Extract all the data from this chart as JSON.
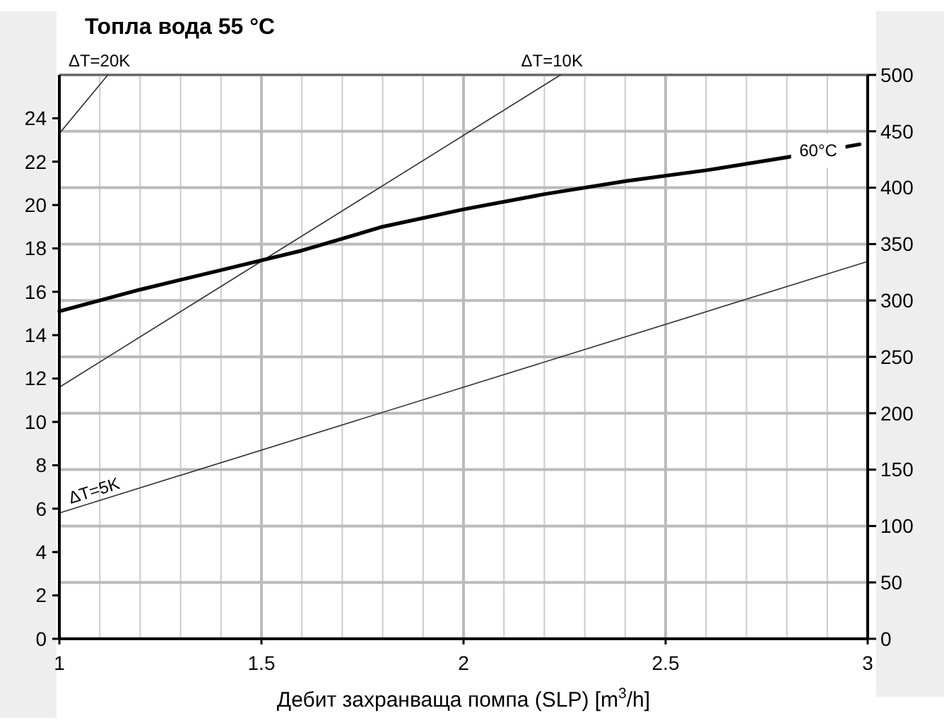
{
  "chart_data": {
    "type": "line",
    "title": "Топла вода 55 °C",
    "xlabel": "Дебит захранваща помпа (SLP) [m$^{3}$/h]",
    "xlim": [
      1,
      3
    ],
    "xticks": [
      1,
      {
        "value": 1.1,
        "label": null
      },
      {
        "value": 1.2,
        "label": null
      },
      {
        "value": 1.3,
        "label": null
      },
      {
        "value": 1.4,
        "label": null
      },
      1.5,
      {
        "value": 1.6,
        "label": null
      },
      {
        "value": 1.7,
        "label": null
      },
      {
        "value": 1.8,
        "label": null
      },
      {
        "value": 1.9,
        "label": null
      },
      2,
      {
        "value": 2.1,
        "label": null
      },
      {
        "value": 2.2,
        "label": null
      },
      {
        "value": 2.3,
        "label": null
      },
      {
        "value": 2.4,
        "label": null
      },
      2.5,
      {
        "value": 2.6,
        "label": null
      },
      {
        "value": 2.7,
        "label": null
      },
      {
        "value": 2.8,
        "label": null
      },
      {
        "value": 2.9,
        "label": null
      },
      3
    ],
    "ylim": [
      0,
      26
    ],
    "yticks": [
      0,
      2,
      4,
      6,
      8,
      10,
      12,
      14,
      16,
      18,
      20,
      22,
      24
    ],
    "y2lim": [
      0,
      500
    ],
    "y2ticks": [
      0,
      50,
      100,
      150,
      200,
      250,
      300,
      350,
      400,
      450,
      500
    ],
    "grid": true,
    "marker": "none",
    "line_style": "solid",
    "series": [
      {
        "name": "ΔT=20K",
        "color": "#333333",
        "x": [
          1,
          1.12
        ],
        "values": [
          23.3,
          26
        ]
      },
      {
        "name": "ΔT=10K",
        "color": "#333333",
        "x": [
          1,
          2.24
        ],
        "values": [
          11.6,
          26
        ]
      },
      {
        "name": "ΔT=5K",
        "color": "#333333",
        "x": [
          1,
          3
        ],
        "values": [
          5.8,
          17.4
        ]
      },
      {
        "name": "60°C",
        "color": "#000000",
        "x": [
          1,
          1.2,
          1.4,
          1.6,
          1.8,
          2,
          2.2,
          2.4,
          2.6,
          2.8,
          2.98
        ],
        "values": [
          15.1,
          16.1,
          17,
          17.9,
          19,
          19.8,
          20.5,
          21.1,
          21.6,
          22.2,
          22.8
        ]
      }
    ]
  }
}
